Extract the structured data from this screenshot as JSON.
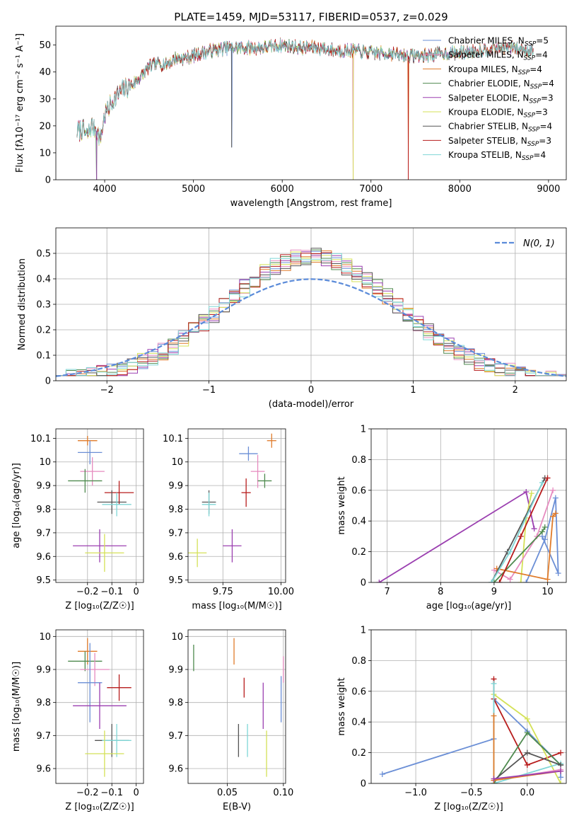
{
  "colors": {
    "chabrier_miles": "#6b8fd6",
    "salpeter_miles": "#e68bbf",
    "kroupa_miles": "#e07b2a",
    "chabrier_elodie": "#4f8a4f",
    "salpeter_elodie": "#9b3fb0",
    "kroupa_elodie": "#d4e157",
    "chabrier_stelib": "#555555",
    "salpeter_stelib": "#b71c1c",
    "kroupa_stelib": "#7fd6d6",
    "normal": "#5b8bd9"
  },
  "chart_data": [
    {
      "type": "line",
      "id": "spectrum",
      "title": "PLATE=1459, MJD=53117, FIBERID=0537, z=0.029",
      "xlabel": "wavelength [Angstrom, rest frame]",
      "ylabel": "Flux [fλ10⁻¹⁷ erg cm⁻² s⁻¹ A⁻¹]",
      "xlim": [
        3450,
        9200
      ],
      "ylim": [
        0,
        57
      ],
      "xticks": [
        4000,
        5000,
        6000,
        7000,
        8000,
        9000
      ],
      "yticks": [
        0,
        10,
        20,
        30,
        40,
        50
      ],
      "grid": false,
      "legend_position": "top-right",
      "continuum": {
        "x": [
          3700,
          3750,
          3800,
          3850,
          3900,
          3950,
          4000,
          4100,
          4200,
          4300,
          4400,
          4500,
          4600,
          4700,
          4800,
          4900,
          5000,
          5200,
          5400,
          5600,
          5800,
          6000,
          6200,
          6400,
          6600,
          6800,
          7000,
          7200,
          7400,
          7600,
          7800,
          8000,
          8200,
          8400,
          8600,
          8800
        ],
        "y": [
          18,
          19,
          16,
          20,
          19,
          15,
          24,
          30,
          33,
          35,
          38,
          42,
          43,
          43,
          45,
          45,
          46,
          48,
          49,
          49,
          49,
          50,
          49,
          49,
          48,
          48,
          47,
          47,
          46,
          46,
          47,
          47,
          48,
          49,
          49,
          48
        ]
      },
      "dips": [
        {
          "x": 5430,
          "y": 12
        },
        {
          "x": 6800,
          "y": 0
        },
        {
          "x": 7420,
          "y": 0
        },
        {
          "x": 3910,
          "y": 0
        }
      ],
      "series": [
        {
          "name": "Chabrier MILES, N",
          "sub": "SSP",
          "suffix": "=5",
          "color_key": "chabrier_miles"
        },
        {
          "name": "Salpeter MILES, N",
          "sub": "SSP",
          "suffix": "=4",
          "color_key": "salpeter_miles"
        },
        {
          "name": "Kroupa MILES, N",
          "sub": "SSP",
          "suffix": "=4",
          "color_key": "kroupa_miles"
        },
        {
          "name": "Chabrier ELODIE, N",
          "sub": "SSP",
          "suffix": "=4",
          "color_key": "chabrier_elodie"
        },
        {
          "name": "Salpeter ELODIE, N",
          "sub": "SSP",
          "suffix": "=3",
          "color_key": "salpeter_elodie"
        },
        {
          "name": "Kroupa ELODIE, N",
          "sub": "SSP",
          "suffix": "=3",
          "color_key": "kroupa_elodie"
        },
        {
          "name": "Chabrier STELIB, N",
          "sub": "SSP",
          "suffix": "=4",
          "color_key": "chabrier_stelib"
        },
        {
          "name": "Salpeter STELIB, N",
          "sub": "SSP",
          "suffix": "=3",
          "color_key": "salpeter_stelib"
        },
        {
          "name": "Kroupa STELIB, N",
          "sub": "SSP",
          "suffix": "=4",
          "color_key": "kroupa_stelib"
        }
      ]
    },
    {
      "type": "histogram",
      "id": "residuals",
      "xlabel": "(data-model)/error",
      "ylabel": "Normed distribution",
      "xlim": [
        -2.5,
        2.5
      ],
      "ylim": [
        0,
        0.6
      ],
      "xticks": [
        -2,
        -1,
        0,
        1,
        2
      ],
      "yticks": [
        0.0,
        0.1,
        0.2,
        0.3,
        0.4,
        0.5
      ],
      "bin_width": 0.1,
      "grid": true,
      "legend": {
        "label": "Ν(0, 1)",
        "position": "top-right"
      },
      "normal_curve": {
        "mean": 0,
        "sigma": 1
      }
    },
    {
      "type": "scatter",
      "id": "age_vs_z",
      "xlabel": "Z [log₁₀(Z/Z☉)]",
      "ylabel": "age  [log₁₀(age/yr)]",
      "xlim": [
        -0.33,
        0.03
      ],
      "ylim": [
        9.49,
        10.14
      ],
      "xticks": [
        -0.2,
        -0.1,
        0.0
      ],
      "yticks": [
        9.5,
        9.6,
        9.7,
        9.8,
        9.9,
        10.0,
        10.1
      ],
      "grid": true,
      "points": [
        {
          "color_key": "kroupa_miles",
          "x": -0.2,
          "xerr": 0.04,
          "y": 10.09,
          "yerr": 0.02
        },
        {
          "color_key": "chabrier_miles",
          "x": -0.19,
          "xerr": 0.05,
          "y": 10.04,
          "yerr": 0.05
        },
        {
          "color_key": "salpeter_miles",
          "x": -0.18,
          "xerr": 0.05,
          "y": 9.96,
          "yerr": 0.06
        },
        {
          "color_key": "chabrier_elodie",
          "x": -0.21,
          "xerr": 0.07,
          "y": 9.92,
          "yerr": 0.05
        },
        {
          "color_key": "salpeter_stelib",
          "x": -0.07,
          "xerr": 0.06,
          "y": 9.87,
          "yerr": 0.05
        },
        {
          "color_key": "chabrier_stelib",
          "x": -0.1,
          "xerr": 0.06,
          "y": 9.83,
          "yerr": 0.05
        },
        {
          "color_key": "kroupa_stelib",
          "x": -0.08,
          "xerr": 0.06,
          "y": 9.82,
          "yerr": 0.05
        },
        {
          "color_key": "salpeter_elodie",
          "x": -0.15,
          "xerr": 0.11,
          "y": 9.645,
          "yerr": 0.07
        },
        {
          "color_key": "kroupa_elodie",
          "x": -0.13,
          "xerr": 0.08,
          "y": 9.615,
          "yerr": 0.08
        }
      ]
    },
    {
      "type": "scatter",
      "id": "age_vs_mass",
      "xlabel": "mass [log₁₀(M/M☉)]",
      "ylabel": "",
      "xlim": [
        9.6,
        10.02
      ],
      "ylim": [
        9.49,
        10.14
      ],
      "xticks": [
        9.75,
        10.0
      ],
      "xtick_labels": [
        "9.75",
        "10.00"
      ],
      "yticks": [
        9.5,
        9.6,
        9.7,
        9.8,
        9.9,
        10.0,
        10.1
      ],
      "grid": true,
      "points": [
        {
          "color_key": "kroupa_miles",
          "x": 9.96,
          "xerr": 0.02,
          "y": 10.09,
          "yerr": 0.03
        },
        {
          "color_key": "chabrier_miles",
          "x": 9.86,
          "xerr": 0.04,
          "y": 10.035,
          "yerr": 0.03
        },
        {
          "color_key": "salpeter_miles",
          "x": 9.9,
          "xerr": 0.03,
          "y": 9.96,
          "yerr": 0.07
        },
        {
          "color_key": "chabrier_elodie",
          "x": 9.93,
          "xerr": 0.03,
          "y": 9.92,
          "yerr": 0.03
        },
        {
          "color_key": "salpeter_stelib",
          "x": 9.85,
          "xerr": 0.02,
          "y": 9.87,
          "yerr": 0.06
        },
        {
          "color_key": "chabrier_stelib",
          "x": 9.69,
          "xerr": 0.03,
          "y": 9.83,
          "yerr": 0.05
        },
        {
          "color_key": "kroupa_stelib",
          "x": 9.69,
          "xerr": 0.03,
          "y": 9.82,
          "yerr": 0.05
        },
        {
          "color_key": "salpeter_elodie",
          "x": 9.79,
          "xerr": 0.04,
          "y": 9.645,
          "yerr": 0.07
        },
        {
          "color_key": "kroupa_elodie",
          "x": 9.64,
          "xerr": 0.04,
          "y": 9.615,
          "yerr": 0.06
        }
      ]
    },
    {
      "type": "line",
      "id": "weight_vs_age",
      "xlabel": "age  [log₁₀(age/yr)]",
      "ylabel": "mass weight",
      "xlim": [
        6.7,
        10.35
      ],
      "ylim": [
        0,
        1
      ],
      "xticks": [
        7,
        8,
        9,
        10
      ],
      "yticks": [
        0.0,
        0.2,
        0.4,
        0.6,
        0.8,
        1.0
      ],
      "grid": true,
      "series": [
        {
          "color_key": "salpeter_elodie",
          "x": [
            6.85,
            9.6,
            9.75
          ],
          "y": [
            0.0,
            0.59,
            0.35
          ]
        },
        {
          "color_key": "kroupa_elodie",
          "x": [
            9.5,
            9.6,
            9.7
          ],
          "y": [
            0.0,
            0.42,
            0.58
          ]
        },
        {
          "color_key": "chabrier_miles",
          "x": [
            9.6,
            9.95,
            10.15,
            10.2,
            9.9
          ],
          "y": [
            0.0,
            0.28,
            0.55,
            0.06,
            0.3
          ]
        },
        {
          "color_key": "salpeter_miles",
          "x": [
            9.0,
            9.3,
            9.8,
            10.1
          ],
          "y": [
            0.08,
            0.02,
            0.3,
            0.6
          ]
        },
        {
          "color_key": "kroupa_miles",
          "x": [
            9.05,
            10.0,
            10.1,
            10.15
          ],
          "y": [
            0.09,
            0.02,
            0.43,
            0.45
          ]
        },
        {
          "color_key": "chabrier_elodie",
          "x": [
            9.0,
            9.9,
            9.95
          ],
          "y": [
            0.0,
            0.33,
            0.36
          ]
        },
        {
          "color_key": "chabrier_stelib",
          "x": [
            8.95,
            9.25,
            9.95
          ],
          "y": [
            0.0,
            0.2,
            0.68
          ]
        },
        {
          "color_key": "salpeter_stelib",
          "x": [
            9.1,
            9.5,
            10.0
          ],
          "y": [
            0.0,
            0.3,
            0.68
          ]
        },
        {
          "color_key": "kroupa_stelib",
          "x": [
            8.95,
            9.3,
            9.9
          ],
          "y": [
            0.0,
            0.2,
            0.65
          ]
        }
      ]
    },
    {
      "type": "scatter",
      "id": "mass_vs_z",
      "xlabel": "Z [log₁₀(Z/Z☉)]",
      "ylabel": "mass [log₁₀(M/M☉)]",
      "xlim": [
        -0.33,
        0.03
      ],
      "ylim": [
        9.555,
        10.02
      ],
      "xticks": [
        -0.2,
        -0.1,
        0.0
      ],
      "yticks": [
        9.6,
        9.7,
        9.8,
        9.9,
        10.0
      ],
      "grid": true,
      "points": [
        {
          "color_key": "kroupa_miles",
          "x": -0.2,
          "xerr": 0.04,
          "y": 9.955,
          "yerr": 0.04
        },
        {
          "color_key": "chabrier_elodie",
          "x": -0.21,
          "xerr": 0.07,
          "y": 9.925,
          "yerr": 0.03
        },
        {
          "color_key": "salpeter_miles",
          "x": -0.17,
          "xerr": 0.06,
          "y": 9.9,
          "yerr": 0.05
        },
        {
          "color_key": "chabrier_miles",
          "x": -0.19,
          "xerr": 0.05,
          "y": 9.86,
          "yerr": 0.12
        },
        {
          "color_key": "salpeter_stelib",
          "x": -0.07,
          "xerr": 0.05,
          "y": 9.845,
          "yerr": 0.04
        },
        {
          "color_key": "salpeter_elodie",
          "x": -0.15,
          "xerr": 0.11,
          "y": 9.79,
          "yerr": 0.07
        },
        {
          "color_key": "chabrier_stelib",
          "x": -0.1,
          "xerr": 0.07,
          "y": 9.685,
          "yerr": 0.05
        },
        {
          "color_key": "kroupa_stelib",
          "x": -0.08,
          "xerr": 0.06,
          "y": 9.685,
          "yerr": 0.05
        },
        {
          "color_key": "kroupa_elodie",
          "x": -0.13,
          "xerr": 0.08,
          "y": 9.645,
          "yerr": 0.07
        }
      ]
    },
    {
      "type": "errorbar",
      "id": "mass_vs_ebv",
      "xlabel": "E(B-V)",
      "ylabel": "",
      "xlim": [
        0.015,
        0.102
      ],
      "ylim": [
        9.555,
        10.02
      ],
      "xticks": [
        0.05,
        0.1
      ],
      "xtick_labels": [
        "0.05",
        "0.10"
      ],
      "yticks": [
        9.6,
        9.7,
        9.8,
        9.9,
        10.0
      ],
      "grid": true,
      "points": [
        {
          "color_key": "chabrier_elodie",
          "x": 0.02,
          "y": 9.935,
          "yerr": 0.04
        },
        {
          "color_key": "kroupa_miles",
          "x": 0.056,
          "y": 9.955,
          "yerr": 0.04
        },
        {
          "color_key": "salpeter_stelib",
          "x": 0.065,
          "y": 9.845,
          "yerr": 0.03
        },
        {
          "color_key": "salpeter_elodie",
          "x": 0.082,
          "y": 9.79,
          "yerr": 0.07
        },
        {
          "color_key": "chabrier_miles",
          "x": 0.098,
          "y": 9.81,
          "yerr": 0.07
        },
        {
          "color_key": "salpeter_miles",
          "x": 0.1,
          "y": 9.9,
          "yerr": 0.04
        },
        {
          "color_key": "chabrier_stelib",
          "x": 0.06,
          "y": 9.685,
          "yerr": 0.05
        },
        {
          "color_key": "kroupa_stelib",
          "x": 0.068,
          "y": 9.685,
          "yerr": 0.05
        },
        {
          "color_key": "kroupa_elodie",
          "x": 0.085,
          "y": 9.645,
          "yerr": 0.07
        }
      ]
    },
    {
      "type": "line",
      "id": "weight_vs_z",
      "xlabel": "Z [log₁₀(Z/Z☉)]",
      "ylabel": "mass weight",
      "xlim": [
        -1.4,
        0.35
      ],
      "ylim": [
        0,
        1
      ],
      "xticks": [
        -1.0,
        -0.5,
        0.0
      ],
      "xtick_labels": [
        "−1.0",
        "−0.5",
        "0.0"
      ],
      "yticks": [
        0.0,
        0.2,
        0.4,
        0.6,
        0.8,
        1.0
      ],
      "grid": true,
      "series": [
        {
          "color_key": "chabrier_miles",
          "x": [
            -1.3,
            -0.3,
            -0.3,
            0.0,
            0.3,
            0.3
          ],
          "y": [
            0.06,
            0.29,
            0.55,
            0.34,
            0.12,
            0.04
          ]
        },
        {
          "color_key": "salpeter_stelib",
          "x": [
            -0.3,
            -0.3,
            0.0,
            0.3
          ],
          "y": [
            0.68,
            0.55,
            0.12,
            0.2
          ]
        },
        {
          "color_key": "kroupa_elodie",
          "x": [
            -0.3,
            0.0,
            0.3
          ],
          "y": [
            0.58,
            0.42,
            0.0
          ]
        },
        {
          "color_key": "kroupa_stelib",
          "x": [
            -0.3,
            -0.3,
            0.3
          ],
          "y": [
            0.65,
            0.0,
            0.13
          ]
        },
        {
          "color_key": "chabrier_elodie",
          "x": [
            -0.3,
            0.0,
            0.3
          ],
          "y": [
            0.0,
            0.33,
            0.12
          ]
        },
        {
          "color_key": "chabrier_stelib",
          "x": [
            -0.3,
            0.0,
            0.3
          ],
          "y": [
            0.02,
            0.2,
            0.12
          ]
        },
        {
          "color_key": "salpeter_miles",
          "x": [
            -0.3,
            0.3
          ],
          "y": [
            0.02,
            0.09
          ]
        },
        {
          "color_key": "kroupa_miles",
          "x": [
            -0.3,
            -0.3,
            0.3
          ],
          "y": [
            0.44,
            0.02,
            0.08
          ]
        },
        {
          "color_key": "salpeter_elodie",
          "x": [
            -0.3,
            0.3
          ],
          "y": [
            0.03,
            0.08
          ]
        }
      ]
    }
  ]
}
